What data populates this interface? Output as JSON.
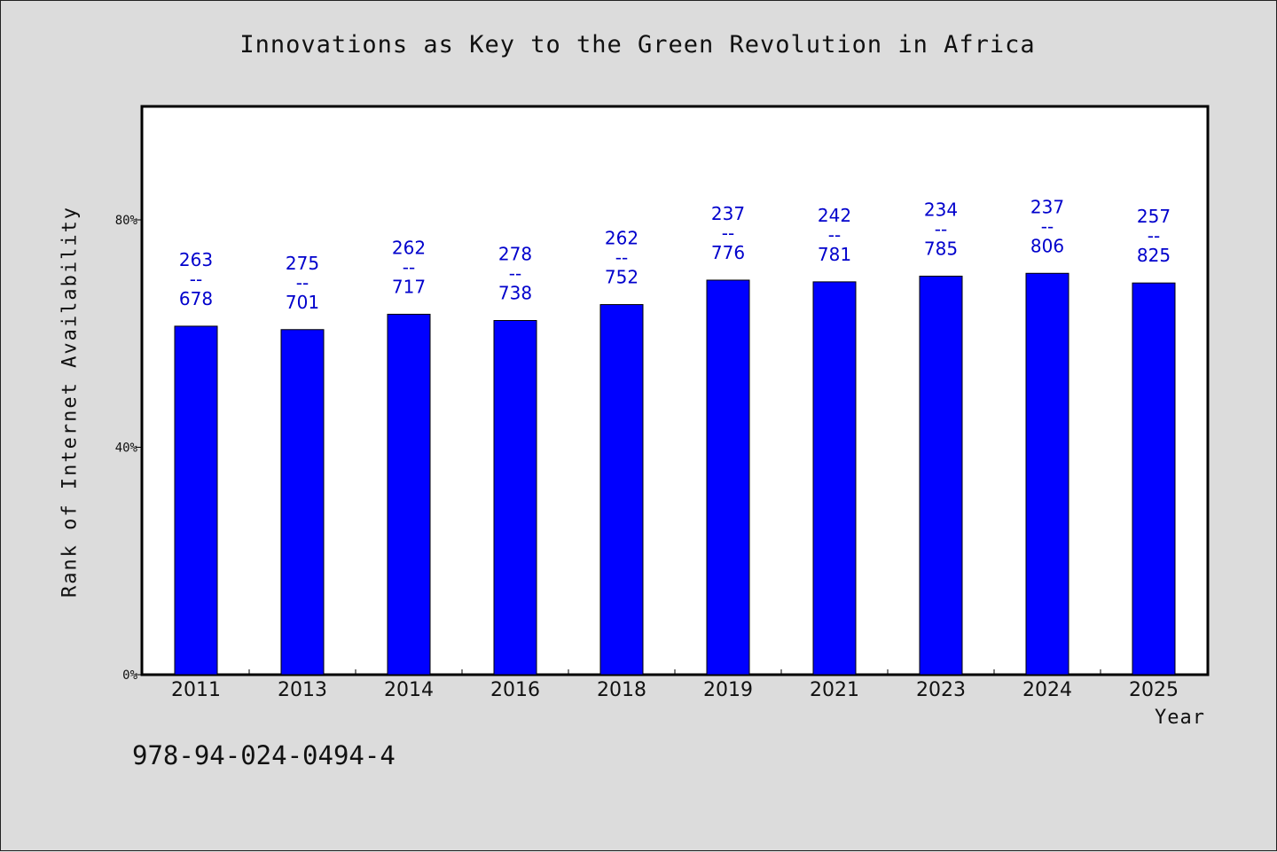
{
  "chart_data": {
    "type": "bar",
    "title": "Innovations as Key to the Green Revolution in Africa",
    "xlabel": "Year",
    "ylabel": "Rank of Internet Availability",
    "categories": [
      "2011",
      "2013",
      "2014",
      "2016",
      "2018",
      "2019",
      "2021",
      "2023",
      "2024",
      "2025"
    ],
    "series": [
      {
        "values": [
          61.3,
          60.7,
          63.4,
          62.3,
          65.1,
          69.4,
          69.1,
          70.1,
          70.6,
          68.9
        ],
        "labels": [
          [
            "263",
            "--",
            "678"
          ],
          [
            "275",
            "--",
            "701"
          ],
          [
            "262",
            "--",
            "717"
          ],
          [
            "278",
            "--",
            "738"
          ],
          [
            "262",
            "--",
            "752"
          ],
          [
            "237",
            "--",
            "776"
          ],
          [
            "242",
            "--",
            "781"
          ],
          [
            "234",
            "--",
            "785"
          ],
          [
            "237",
            "--",
            "806"
          ],
          [
            "257",
            "--",
            "825"
          ]
        ]
      }
    ],
    "ylim": [
      0,
      100
    ],
    "yticks": [
      "0%",
      "40%",
      "80%"
    ],
    "ytick_values": [
      0,
      40,
      80
    ],
    "grid": false,
    "colors": {
      "bar": "#0000ff",
      "label": "#0000cc",
      "background": "#dcdcdc",
      "plot_bg": "#ffffff"
    }
  },
  "footer": {
    "isbn": "978-94-024-0494-4"
  }
}
